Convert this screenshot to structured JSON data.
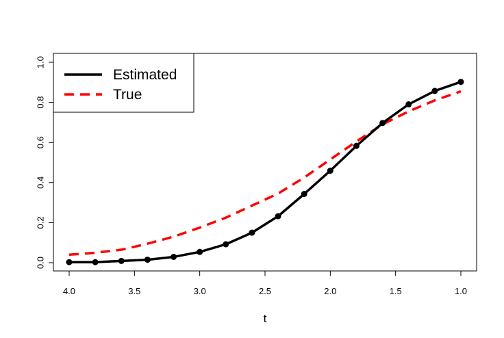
{
  "chart_data": {
    "type": "line",
    "title": "",
    "xlabel": "t",
    "ylabel": "",
    "xlim": [
      4.0,
      1.0
    ],
    "ylim": [
      0.0,
      1.0
    ],
    "x_reversed": true,
    "xticks": [
      "4.0",
      "3.5",
      "3.0",
      "2.5",
      "2.0",
      "1.5",
      "1.0"
    ],
    "yticks": [
      "0.0",
      "0.2",
      "0.4",
      "0.6",
      "0.8",
      "1.0"
    ],
    "grid": false,
    "legend_position": "top-left",
    "series": [
      {
        "name": "Estimated",
        "color": "#000000",
        "style": "solid-with-points",
        "x": [
          4.0,
          3.8,
          3.6,
          3.4,
          3.2,
          3.0,
          2.8,
          2.6,
          2.4,
          2.2,
          2.0,
          1.8,
          1.6,
          1.4,
          1.2,
          1.0
        ],
        "y": [
          0.003,
          0.003,
          0.009,
          0.015,
          0.029,
          0.054,
          0.092,
          0.15,
          0.232,
          0.343,
          0.459,
          0.583,
          0.697,
          0.79,
          0.857,
          0.902
        ]
      },
      {
        "name": "True",
        "color": "#ff0000",
        "style": "dashed",
        "x": [
          4.0,
          3.8,
          3.6,
          3.4,
          3.2,
          3.0,
          2.8,
          2.6,
          2.4,
          2.2,
          2.0,
          1.8,
          1.6,
          1.4,
          1.2,
          1.0
        ],
        "y": [
          0.04,
          0.05,
          0.065,
          0.095,
          0.13,
          0.175,
          0.225,
          0.285,
          0.345,
          0.425,
          0.515,
          0.605,
          0.69,
          0.755,
          0.81,
          0.855
        ]
      }
    ]
  }
}
